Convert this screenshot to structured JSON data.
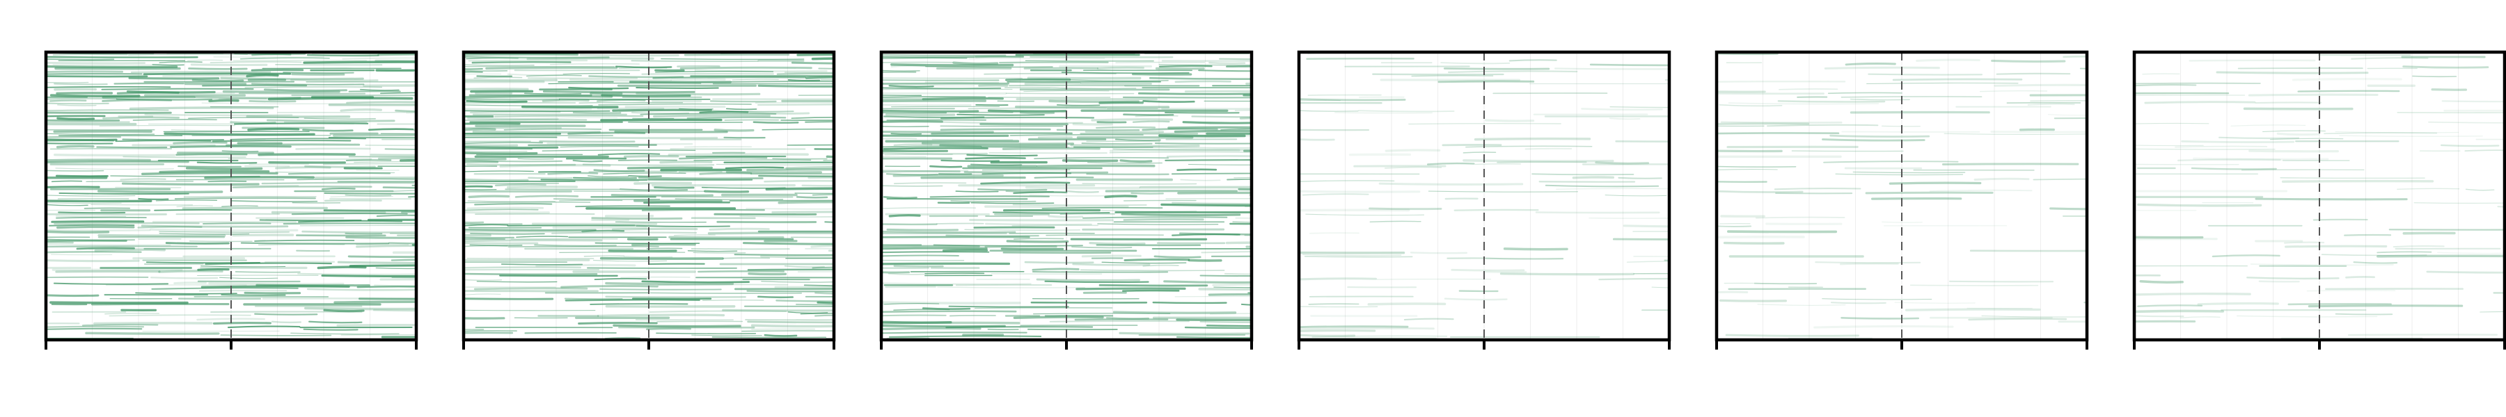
{
  "chart_data": [
    {
      "type": "heatmap",
      "panel": 1,
      "xticks": 3,
      "center_marker": "dashed-vertical",
      "density": 0.78,
      "colors": {
        "band": "#2e8b57",
        "frame": "#000000"
      }
    },
    {
      "type": "heatmap",
      "panel": 2,
      "xticks": 3,
      "center_marker": "dashed-vertical",
      "density": 0.78,
      "colors": {
        "band": "#2e8b57",
        "frame": "#000000"
      }
    },
    {
      "type": "heatmap",
      "panel": 3,
      "xticks": 3,
      "center_marker": "dashed-vertical",
      "density": 0.72,
      "colors": {
        "band": "#2e8b57",
        "frame": "#000000"
      }
    },
    {
      "type": "heatmap",
      "panel": 4,
      "xticks": 3,
      "center_marker": "dashed-vertical",
      "density": 0.18,
      "colors": {
        "band": "#2e8b57",
        "frame": "#000000"
      }
    },
    {
      "type": "heatmap",
      "panel": 5,
      "xticks": 3,
      "center_marker": "dashed-vertical",
      "density": 0.18,
      "colors": {
        "band": "#2e8b57",
        "frame": "#000000"
      }
    },
    {
      "type": "heatmap",
      "panel": 6,
      "xticks": 3,
      "center_marker": "dashed-vertical",
      "density": 0.16,
      "colors": {
        "band": "#2e8b57",
        "frame": "#000000"
      }
    }
  ]
}
